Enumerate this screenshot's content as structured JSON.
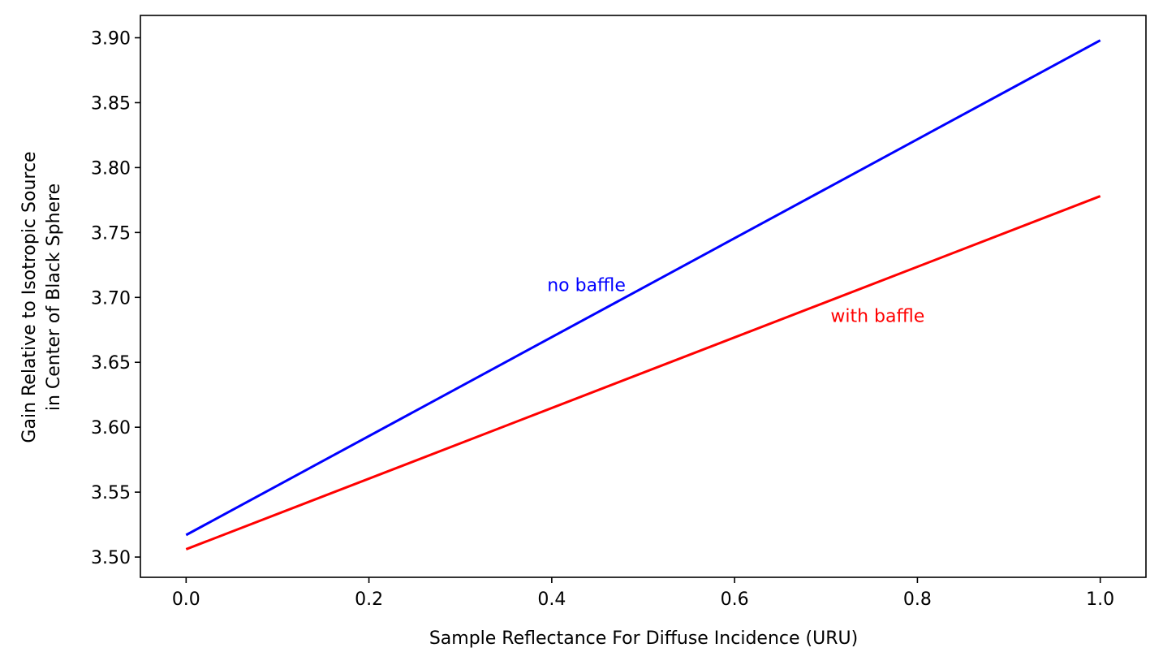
{
  "chart_data": {
    "type": "line",
    "title": "",
    "xlabel": "Sample Reflectance For Diffuse Incidence (URU)",
    "ylabel_lines": [
      "Gain Relative to Isotropic Source",
      "in Center of Black Sphere"
    ],
    "xlim": [
      -0.05,
      1.05
    ],
    "ylim": [
      3.4844,
      3.9172
    ],
    "xticks": [
      0.0,
      0.2,
      0.4,
      0.6,
      0.8,
      1.0
    ],
    "xtick_labels": [
      "0.0",
      "0.2",
      "0.4",
      "0.6",
      "0.8",
      "1.0"
    ],
    "yticks": [
      3.5,
      3.55,
      3.6,
      3.65,
      3.7,
      3.75,
      3.8,
      3.85,
      3.9
    ],
    "ytick_labels": [
      "3.50",
      "3.55",
      "3.60",
      "3.65",
      "3.70",
      "3.75",
      "3.80",
      "3.85",
      "3.90"
    ],
    "grid": false,
    "legend": "none",
    "series": [
      {
        "color": "#0000ff",
        "x": [
          0.0,
          1.0
        ],
        "y": [
          3.517,
          3.898
        ]
      },
      {
        "color": "#ff0000",
        "x": [
          0.0,
          1.0
        ],
        "y": [
          3.506,
          3.778
        ]
      }
    ],
    "annotations": [
      {
        "text": "no baffle",
        "x": 0.395,
        "y": 3.705,
        "color": "#0000ff"
      },
      {
        "text": "with baffle",
        "x": 0.705,
        "y": 3.681,
        "color": "#ff0000"
      }
    ]
  }
}
